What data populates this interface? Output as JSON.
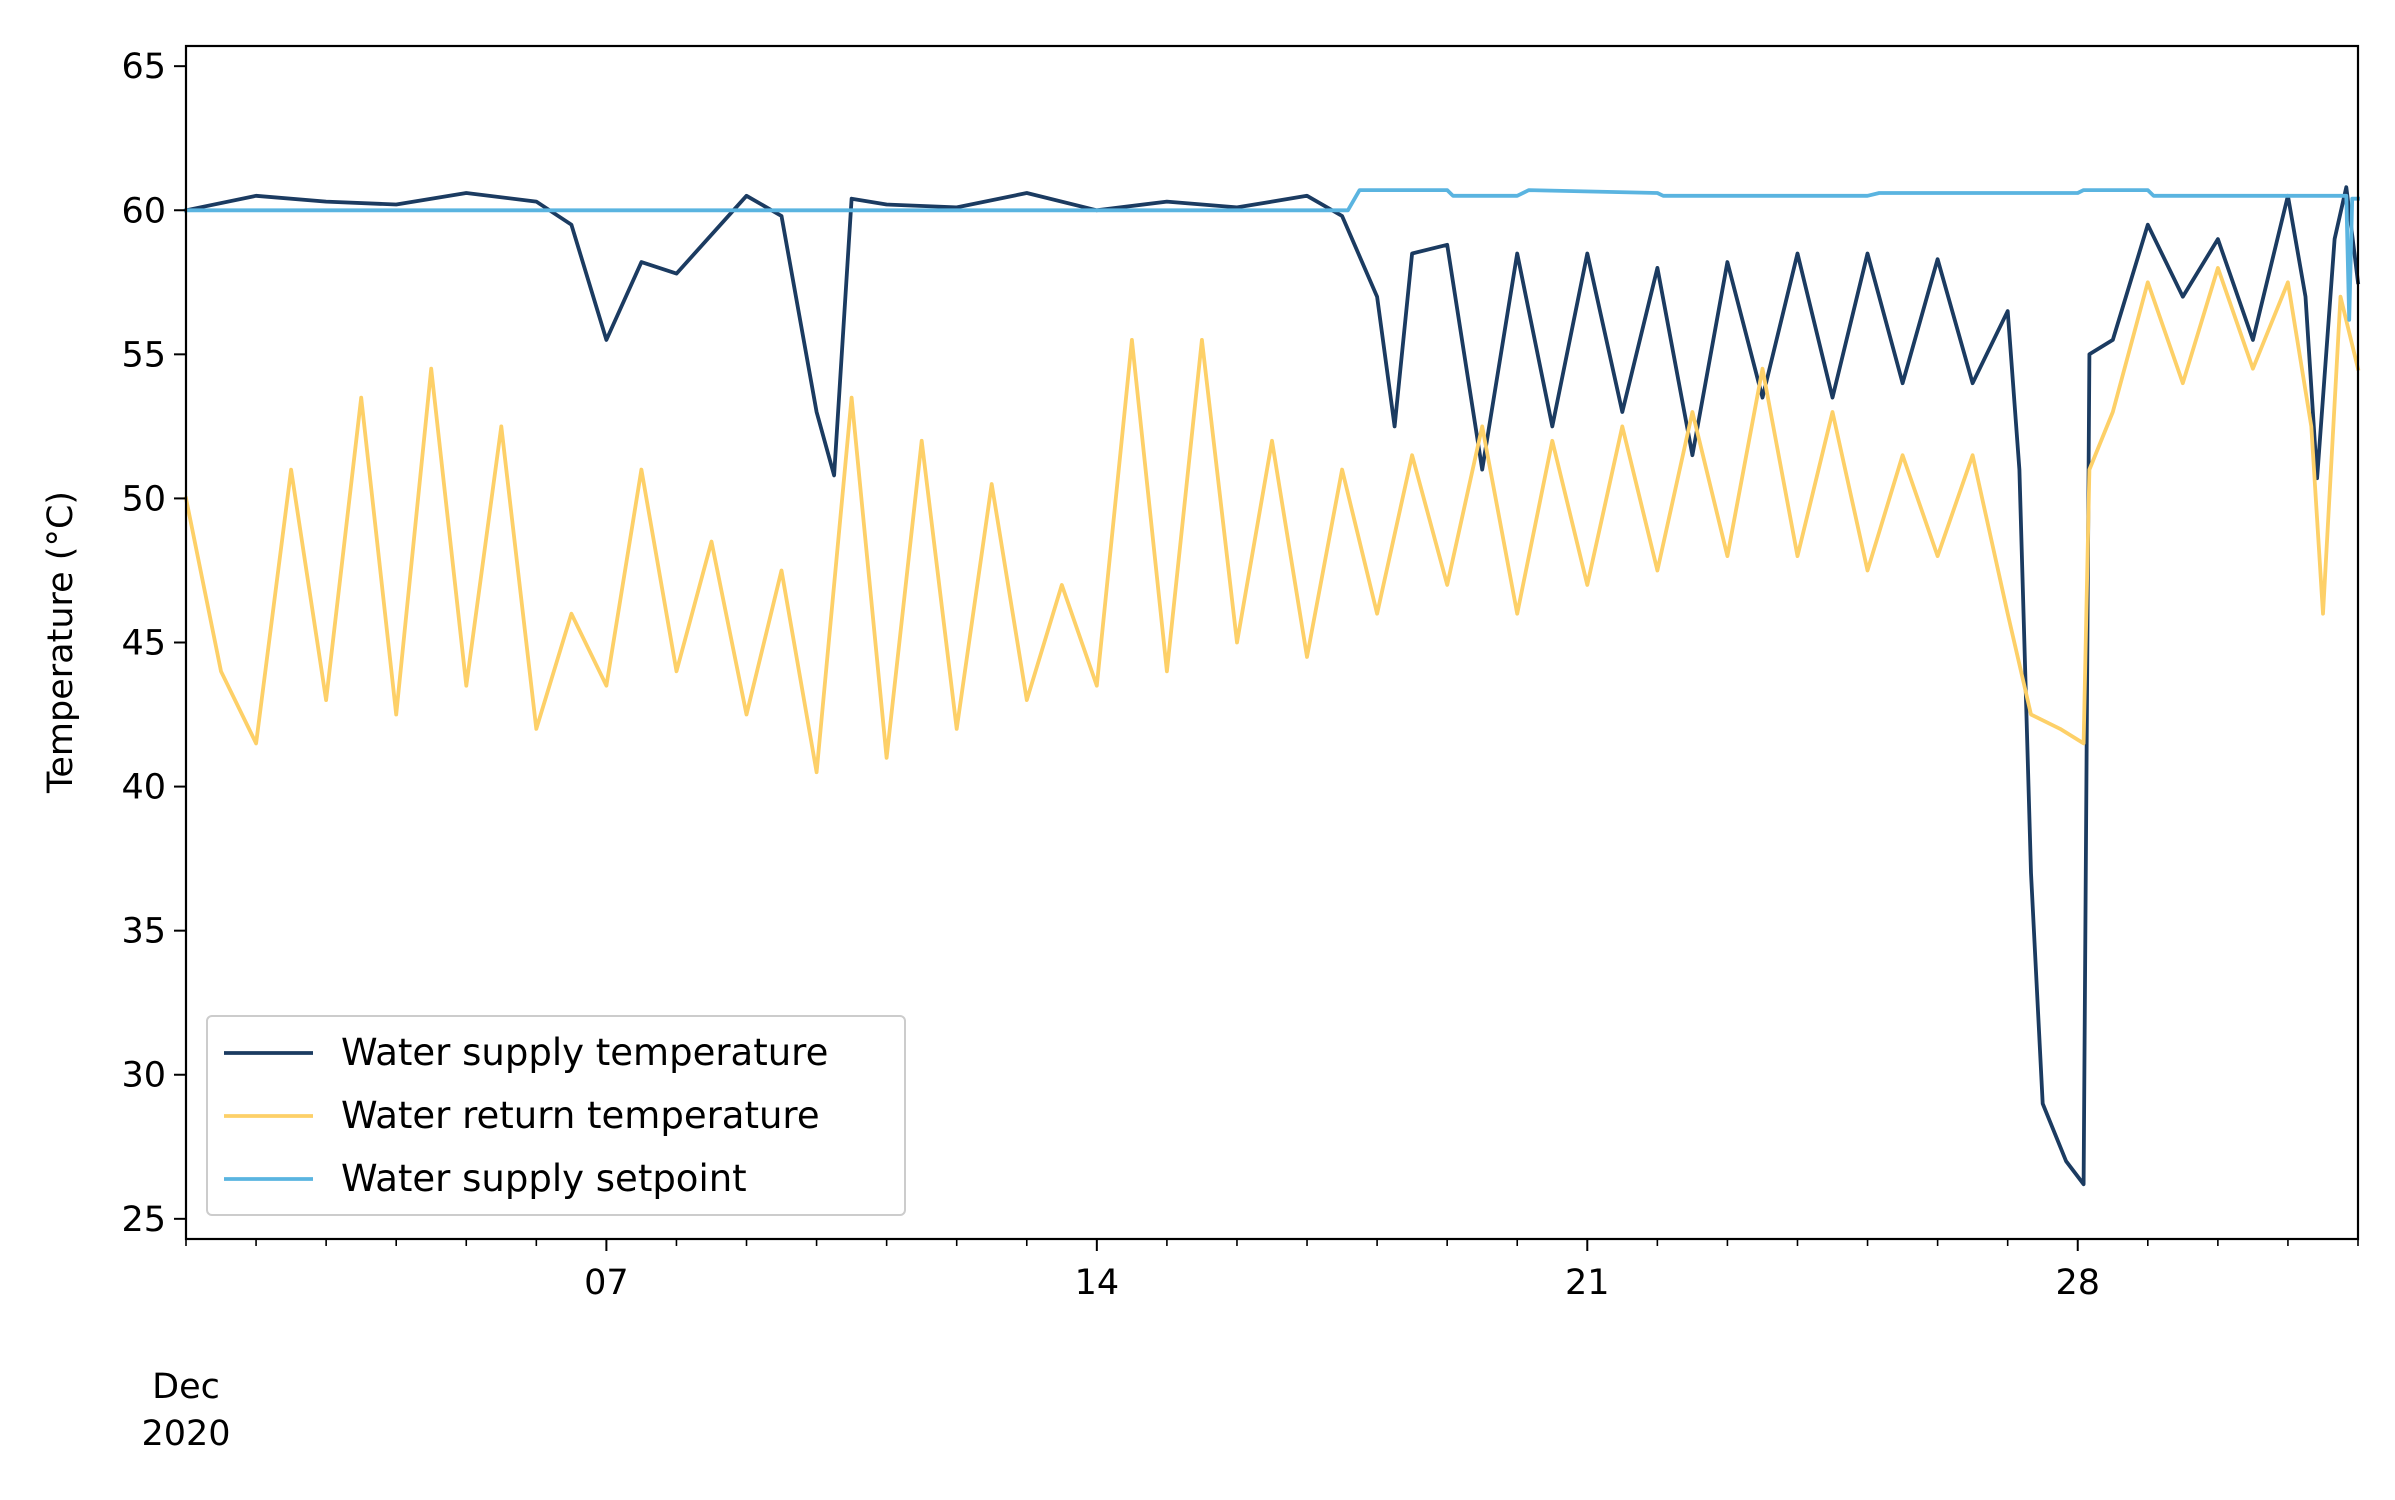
{
  "chart_data": {
    "type": "line",
    "title": "",
    "xlabel": "",
    "ylabel": "Temperature (°C)",
    "x_range": [
      "2020-12-01",
      "2021-01-01"
    ],
    "ylim": [
      24.3,
      65.7
    ],
    "y_ticks": [
      25,
      30,
      35,
      40,
      45,
      50,
      55,
      60,
      65
    ],
    "x_major_ticks": [
      {
        "date": "2020-12-07",
        "label": "07"
      },
      {
        "date": "2020-12-14",
        "label": "14"
      },
      {
        "date": "2020-12-21",
        "label": "21"
      },
      {
        "date": "2020-12-28",
        "label": "28"
      }
    ],
    "x_minor_tick_interval_days": 1,
    "x_corner_label": {
      "month": "Dec",
      "year": "2020"
    },
    "grid": false,
    "legend_position": "lower-left",
    "series": [
      {
        "name": "Water supply temperature",
        "color": "#1b3b61",
        "points": [
          [
            "2020-12-01",
            60.0
          ],
          [
            "2020-12-02",
            60.5
          ],
          [
            "2020-12-03",
            60.3
          ],
          [
            "2020-12-04",
            60.2
          ],
          [
            "2020-12-05",
            60.6
          ],
          [
            "2020-12-06",
            60.3
          ],
          [
            "2020-12-06 12:00",
            59.5
          ],
          [
            "2020-12-07",
            55.5
          ],
          [
            "2020-12-07 12:00",
            58.2
          ],
          [
            "2020-12-08",
            57.8
          ],
          [
            "2020-12-09",
            60.5
          ],
          [
            "2020-12-09 12:00",
            59.8
          ],
          [
            "2020-12-10",
            53.0
          ],
          [
            "2020-12-10 06:00",
            50.8
          ],
          [
            "2020-12-10 12:00",
            60.4
          ],
          [
            "2020-12-11",
            60.2
          ],
          [
            "2020-12-12",
            60.1
          ],
          [
            "2020-12-13",
            60.6
          ],
          [
            "2020-12-14",
            60.0
          ],
          [
            "2020-12-15",
            60.3
          ],
          [
            "2020-12-16",
            60.1
          ],
          [
            "2020-12-17",
            60.5
          ],
          [
            "2020-12-17 12:00",
            59.8
          ],
          [
            "2020-12-18",
            57.0
          ],
          [
            "2020-12-18 06:00",
            52.5
          ],
          [
            "2020-12-18 12:00",
            58.5
          ],
          [
            "2020-12-19",
            58.8
          ],
          [
            "2020-12-19 12:00",
            51.0
          ],
          [
            "2020-12-20",
            58.5
          ],
          [
            "2020-12-20 12:00",
            52.5
          ],
          [
            "2020-12-21",
            58.5
          ],
          [
            "2020-12-21 12:00",
            53.0
          ],
          [
            "2020-12-22",
            58.0
          ],
          [
            "2020-12-22 12:00",
            51.5
          ],
          [
            "2020-12-23",
            58.2
          ],
          [
            "2020-12-23 12:00",
            53.5
          ],
          [
            "2020-12-24",
            58.5
          ],
          [
            "2020-12-24 12:00",
            53.5
          ],
          [
            "2020-12-25",
            58.5
          ],
          [
            "2020-12-25 12:00",
            54.0
          ],
          [
            "2020-12-26",
            58.3
          ],
          [
            "2020-12-26 12:00",
            54.0
          ],
          [
            "2020-12-27",
            56.5
          ],
          [
            "2020-12-27 04:00",
            51.0
          ],
          [
            "2020-12-27 08:00",
            37.0
          ],
          [
            "2020-12-27 12:00",
            29.0
          ],
          [
            "2020-12-27 20:00",
            27.0
          ],
          [
            "2020-12-28 02:00",
            26.2
          ],
          [
            "2020-12-28 04:00",
            55.0
          ],
          [
            "2020-12-28 12:00",
            55.5
          ],
          [
            "2020-12-29",
            59.5
          ],
          [
            "2020-12-29 12:00",
            57.0
          ],
          [
            "2020-12-30",
            59.0
          ],
          [
            "2020-12-30 12:00",
            55.5
          ],
          [
            "2020-12-31",
            60.5
          ],
          [
            "2020-12-31 06:00",
            57.0
          ],
          [
            "2020-12-31 10:00",
            50.7
          ],
          [
            "2020-12-31 16:00",
            59.0
          ],
          [
            "2020-12-31 20:00",
            60.8
          ],
          [
            "2021-01-01",
            57.5
          ]
        ]
      },
      {
        "name": "Water return temperature",
        "color": "#fdd068",
        "points": [
          [
            "2020-12-01",
            50.0
          ],
          [
            "2020-12-01 12:00",
            44.0
          ],
          [
            "2020-12-02",
            41.5
          ],
          [
            "2020-12-02 12:00",
            51.0
          ],
          [
            "2020-12-03",
            43.0
          ],
          [
            "2020-12-03 12:00",
            53.5
          ],
          [
            "2020-12-04",
            42.5
          ],
          [
            "2020-12-04 12:00",
            54.5
          ],
          [
            "2020-12-05",
            43.5
          ],
          [
            "2020-12-05 12:00",
            52.5
          ],
          [
            "2020-12-06",
            42.0
          ],
          [
            "2020-12-06 12:00",
            46.0
          ],
          [
            "2020-12-07",
            43.5
          ],
          [
            "2020-12-07 12:00",
            51.0
          ],
          [
            "2020-12-08",
            44.0
          ],
          [
            "2020-12-08 12:00",
            48.5
          ],
          [
            "2020-12-09",
            42.5
          ],
          [
            "2020-12-09 12:00",
            47.5
          ],
          [
            "2020-12-10",
            40.5
          ],
          [
            "2020-12-10 12:00",
            53.5
          ],
          [
            "2020-12-11",
            41.0
          ],
          [
            "2020-12-11 12:00",
            52.0
          ],
          [
            "2020-12-12",
            42.0
          ],
          [
            "2020-12-12 12:00",
            50.5
          ],
          [
            "2020-12-13",
            43.0
          ],
          [
            "2020-12-13 12:00",
            47.0
          ],
          [
            "2020-12-14",
            43.5
          ],
          [
            "2020-12-14 12:00",
            55.5
          ],
          [
            "2020-12-15",
            44.0
          ],
          [
            "2020-12-15 12:00",
            55.5
          ],
          [
            "2020-12-16",
            45.0
          ],
          [
            "2020-12-16 12:00",
            52.0
          ],
          [
            "2020-12-17",
            44.5
          ],
          [
            "2020-12-17 12:00",
            51.0
          ],
          [
            "2020-12-18",
            46.0
          ],
          [
            "2020-12-18 12:00",
            51.5
          ],
          [
            "2020-12-19",
            47.0
          ],
          [
            "2020-12-19 12:00",
            52.5
          ],
          [
            "2020-12-20",
            46.0
          ],
          [
            "2020-12-20 12:00",
            52.0
          ],
          [
            "2020-12-21",
            47.0
          ],
          [
            "2020-12-21 12:00",
            52.5
          ],
          [
            "2020-12-22",
            47.5
          ],
          [
            "2020-12-22 12:00",
            53.0
          ],
          [
            "2020-12-23",
            48.0
          ],
          [
            "2020-12-23 12:00",
            54.5
          ],
          [
            "2020-12-24",
            48.0
          ],
          [
            "2020-12-24 12:00",
            53.0
          ],
          [
            "2020-12-25",
            47.5
          ],
          [
            "2020-12-25 12:00",
            51.5
          ],
          [
            "2020-12-26",
            48.0
          ],
          [
            "2020-12-26 12:00",
            51.5
          ],
          [
            "2020-12-27",
            46.0
          ],
          [
            "2020-12-27 08:00",
            42.5
          ],
          [
            "2020-12-27 18:00",
            42.0
          ],
          [
            "2020-12-28 02:00",
            41.5
          ],
          [
            "2020-12-28 04:00",
            51.0
          ],
          [
            "2020-12-28 12:00",
            53.0
          ],
          [
            "2020-12-29",
            57.5
          ],
          [
            "2020-12-29 12:00",
            54.0
          ],
          [
            "2020-12-30",
            58.0
          ],
          [
            "2020-12-30 12:00",
            54.5
          ],
          [
            "2020-12-31",
            57.5
          ],
          [
            "2020-12-31 08:00",
            52.5
          ],
          [
            "2020-12-31 12:00",
            46.0
          ],
          [
            "2020-12-31 18:00",
            57.0
          ],
          [
            "2021-01-01",
            54.5
          ]
        ]
      },
      {
        "name": "Water supply setpoint",
        "color": "#5ab4e0",
        "points": [
          [
            "2020-12-01",
            60.0
          ],
          [
            "2020-12-17 14:00",
            60.0
          ],
          [
            "2020-12-17 18:00",
            60.7
          ],
          [
            "2020-12-19",
            60.7
          ],
          [
            "2020-12-19 02:00",
            60.5
          ],
          [
            "2020-12-20",
            60.5
          ],
          [
            "2020-12-20 04:00",
            60.7
          ],
          [
            "2020-12-22",
            60.6
          ],
          [
            "2020-12-22 02:00",
            60.5
          ],
          [
            "2020-12-25",
            60.5
          ],
          [
            "2020-12-25 04:00",
            60.6
          ],
          [
            "2020-12-28",
            60.6
          ],
          [
            "2020-12-28 02:00",
            60.7
          ],
          [
            "2020-12-29",
            60.7
          ],
          [
            "2020-12-29 02:00",
            60.5
          ],
          [
            "2020-12-31 20:00",
            60.5
          ],
          [
            "2020-12-31 21:00",
            56.2
          ],
          [
            "2020-12-31 22:00",
            60.4
          ],
          [
            "2021-01-01",
            60.4
          ]
        ]
      }
    ]
  }
}
